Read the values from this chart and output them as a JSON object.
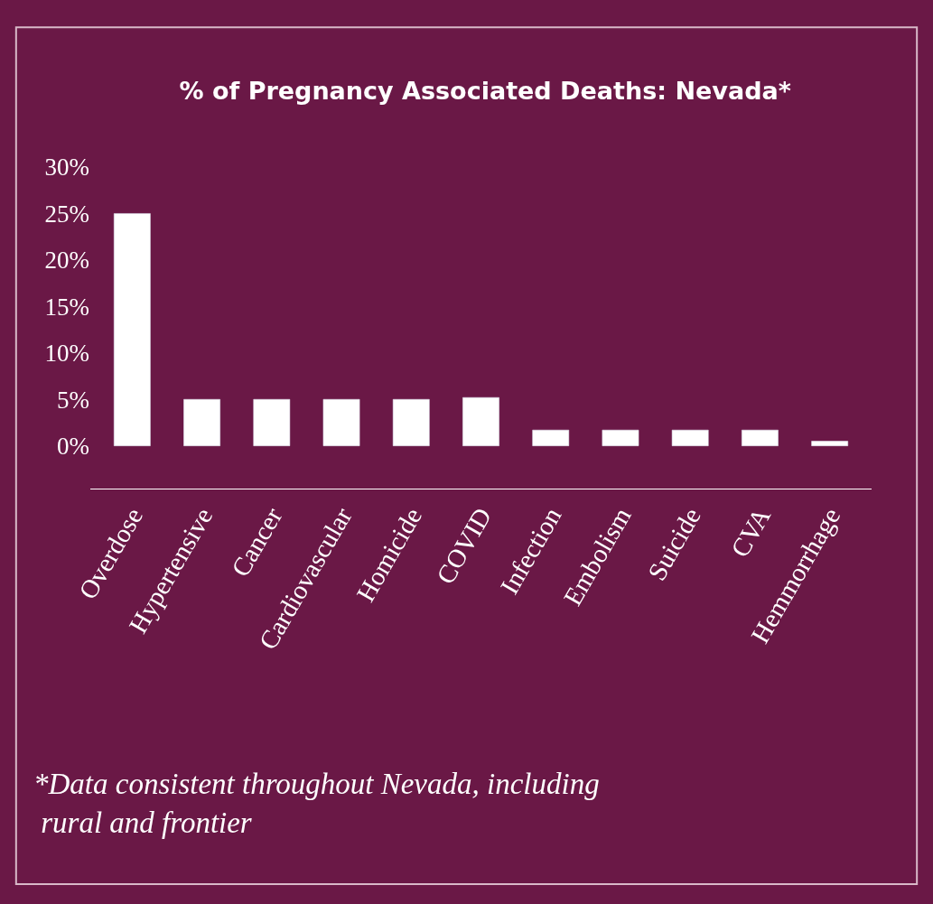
{
  "chart_data": {
    "type": "bar",
    "title": "% of Pregnancy Associated Deaths: Nevada*",
    "categories": [
      "Overdose",
      "Hypertensive",
      "Cancer",
      "Cardiovascular",
      "Homicide",
      "COVID",
      "Infection",
      "Embolism",
      "Suicide",
      "CVA",
      "Hemmorrhage"
    ],
    "values": [
      25,
      5,
      5,
      5,
      5,
      5.2,
      1.7,
      1.7,
      1.7,
      1.7,
      0.5
    ],
    "color": "#ffffff",
    "ylim": [
      -4.6,
      30
    ],
    "yticks": [
      {
        "value": 0,
        "label": "0%"
      },
      {
        "value": 5,
        "label": "5%"
      },
      {
        "value": 10,
        "label": "10%"
      },
      {
        "value": 15,
        "label": "15%"
      },
      {
        "value": 20,
        "label": "20%"
      },
      {
        "value": 25,
        "label": "25%"
      },
      {
        "value": 30,
        "label": "30%"
      }
    ],
    "grid": false,
    "annotations": [
      "*Data consistent throughout Nevada, including\n rural and frontier"
    ]
  }
}
